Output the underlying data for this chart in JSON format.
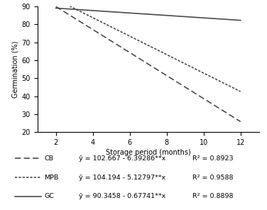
{
  "title": "",
  "xlabel": "Storage period (months)",
  "ylabel": "Germination (%)",
  "xlim": [
    1,
    13
  ],
  "ylim": [
    20,
    90
  ],
  "xticks": [
    2,
    4,
    6,
    8,
    10,
    12
  ],
  "yticks": [
    20,
    30,
    40,
    50,
    60,
    70,
    80,
    90
  ],
  "series": [
    {
      "label": "CB",
      "intercept": 102.667,
      "slope": -6.39286,
      "linestyle": "dashed_wide",
      "color": "#4a4a4a",
      "linewidth": 1.2
    },
    {
      "label": "MPB",
      "intercept": 104.194,
      "slope": -5.12797,
      "linestyle": "dashed_narrow",
      "color": "#4a4a4a",
      "linewidth": 1.2
    },
    {
      "label": "GC",
      "intercept": 90.3458,
      "slope": -0.67741,
      "linestyle": "solid",
      "color": "#4a4a4a",
      "linewidth": 1.2
    }
  ],
  "legend_equations": [
    "ŷ = 102.667 - 6.39286**x",
    "ŷ = 104.194 - 5.12797**x",
    "ŷ = 90.3458 - 0.67741**x"
  ],
  "legend_r2": [
    "R² = 0.8923",
    "R² = 0.9588",
    "R² = 0.8898"
  ],
  "background_color": "#ffffff",
  "font_size": 7.0,
  "legend_font_size": 6.8
}
